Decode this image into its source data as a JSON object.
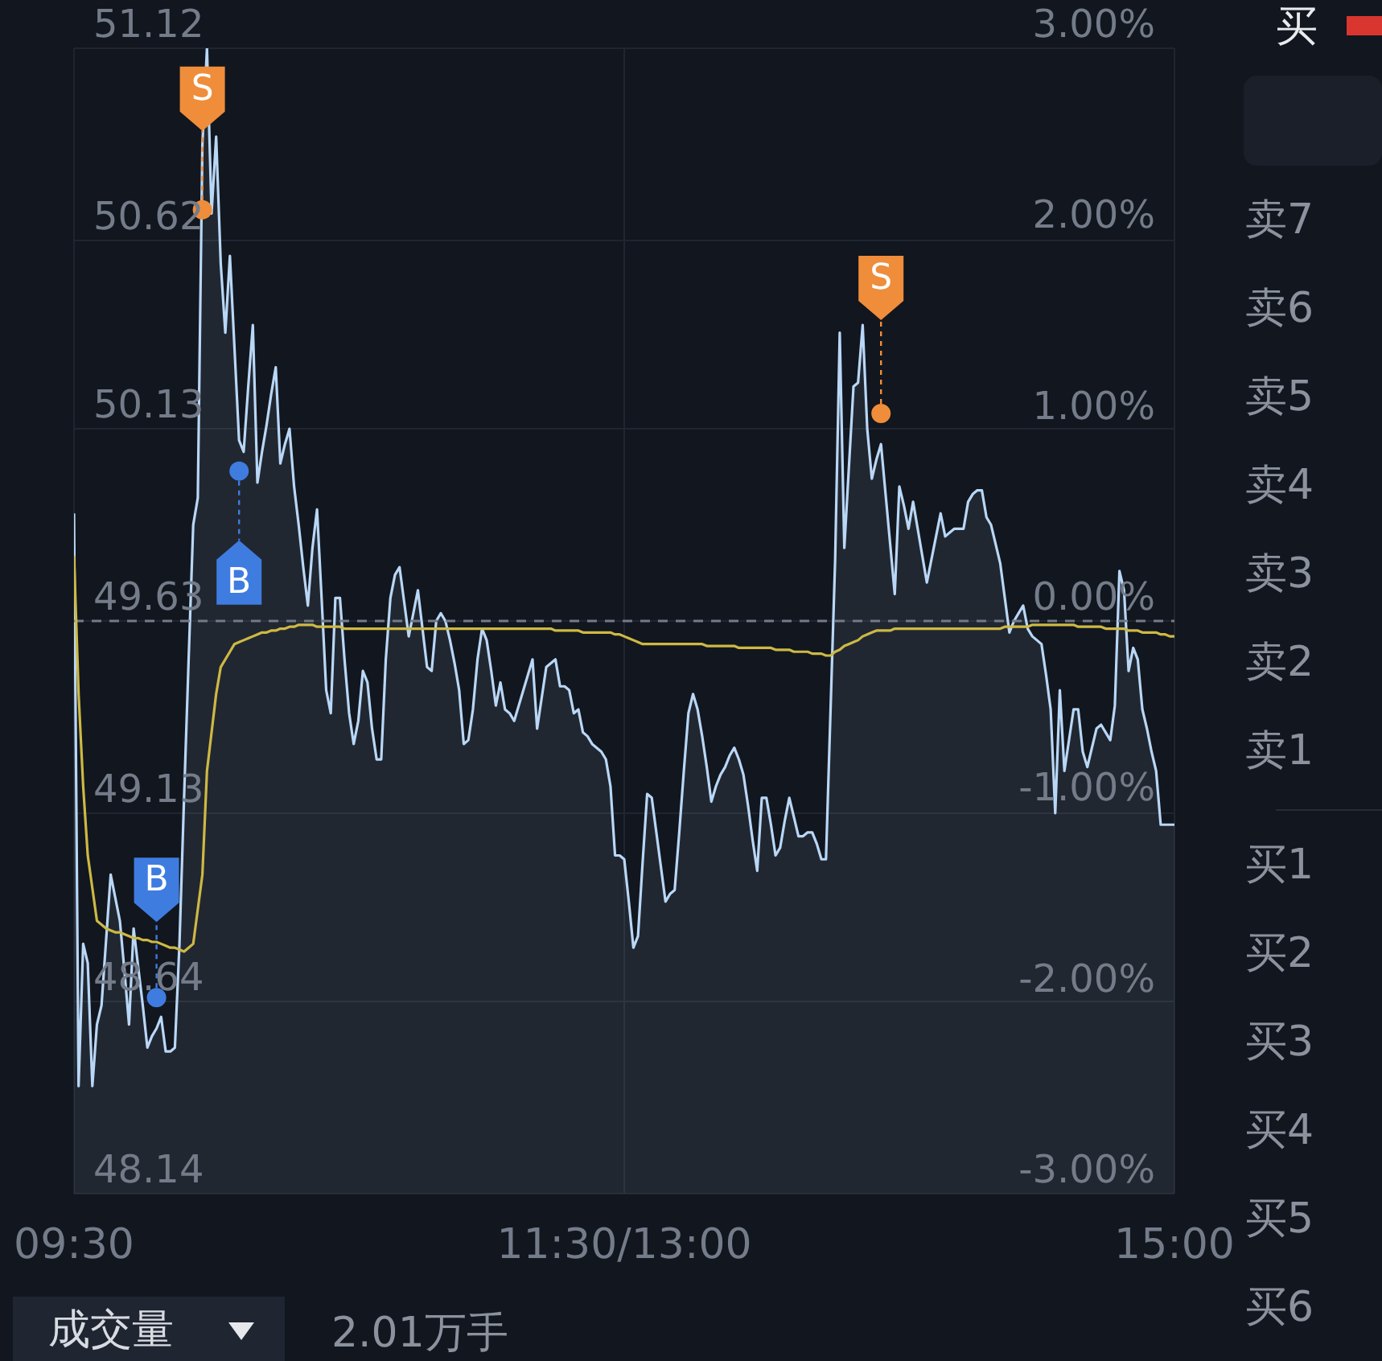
{
  "chart_data": {
    "type": "area",
    "categories": [
      "09:30",
      null,
      null,
      null,
      null,
      null,
      null,
      null,
      null,
      null,
      null,
      null,
      null,
      null,
      null,
      null,
      null,
      null,
      null,
      null,
      null,
      null,
      null,
      null,
      null,
      null,
      null,
      null,
      null,
      null,
      null,
      null,
      null,
      null,
      null,
      null,
      null,
      null,
      null,
      null,
      null,
      null,
      null,
      null,
      null,
      null,
      null,
      null,
      null,
      null,
      null,
      null,
      null,
      null,
      null,
      null,
      null,
      null,
      null,
      null,
      null,
      null,
      null,
      null,
      null,
      null,
      null,
      null,
      null,
      null,
      null,
      null,
      null,
      null,
      null,
      null,
      null,
      null,
      null,
      null,
      null,
      null,
      null,
      null,
      null,
      null,
      null,
      null,
      null,
      null,
      null,
      null,
      null,
      null,
      null,
      null,
      null,
      null,
      null,
      null,
      null,
      null,
      null,
      null,
      null,
      null,
      null,
      null,
      null,
      null,
      null,
      null,
      null,
      null,
      null,
      null,
      null,
      null,
      null,
      null,
      "11:30/13:00",
      null,
      null,
      null,
      null,
      null,
      null,
      null,
      null,
      null,
      null,
      null,
      null,
      null,
      null,
      null,
      null,
      null,
      null,
      null,
      null,
      null,
      null,
      null,
      null,
      null,
      null,
      null,
      null,
      null,
      null,
      null,
      null,
      null,
      null,
      null,
      null,
      null,
      null,
      null,
      null,
      null,
      null,
      null,
      null,
      null,
      null,
      null,
      null,
      null,
      null,
      null,
      null,
      null,
      null,
      null,
      null,
      null,
      null,
      null,
      null,
      null,
      null,
      null,
      null,
      null,
      null,
      null,
      null,
      null,
      null,
      null,
      null,
      null,
      null,
      null,
      null,
      null,
      null,
      null,
      null,
      null,
      null,
      null,
      null,
      null,
      null,
      null,
      null,
      null,
      null,
      null,
      null,
      null,
      null,
      null,
      null,
      null,
      null,
      null,
      null,
      null,
      null,
      null,
      null,
      null,
      null,
      null,
      null,
      null,
      null,
      null,
      null,
      null,
      null,
      null,
      null,
      null,
      null,
      null,
      "15:00"
    ],
    "ylim": [
      48.14,
      51.12
    ],
    "yticks": [
      48.14,
      48.64,
      49.13,
      49.63,
      50.13,
      50.62,
      51.12
    ],
    "y2lim": [
      -3,
      3
    ],
    "y2ticks": [
      {
        "value": -3,
        "label": "-3.00%"
      },
      {
        "value": -2,
        "label": "-2.00%"
      },
      {
        "value": -1,
        "label": "-1.00%"
      },
      {
        "value": 0,
        "label": "0.00%"
      },
      {
        "value": 1,
        "label": "1.00%"
      },
      {
        "value": 2,
        "label": "2.00%"
      },
      {
        "value": 3,
        "label": "3.00%"
      }
    ],
    "grid": true,
    "ref_lines": [
      {
        "axis": "y",
        "value": 49.63,
        "color": "#737a88",
        "line_style": "dashed"
      }
    ],
    "series": [
      {
        "color": "#b9d7f6",
        "values": [
          49.91,
          48.42,
          48.79,
          48.74,
          48.42,
          48.58,
          48.63,
          48.8,
          48.97,
          48.91,
          48.85,
          48.72,
          48.58,
          48.83,
          48.73,
          48.63,
          48.52,
          48.55,
          48.57,
          48.6,
          48.51,
          48.51,
          48.52,
          48.79,
          49.17,
          49.53,
          49.88,
          49.95,
          50.87,
          51.12,
          50.69,
          50.89,
          50.56,
          50.38,
          50.58,
          50.34,
          50.1,
          50.07,
          50.24,
          50.4,
          49.99,
          50.07,
          50.14,
          50.22,
          50.29,
          50.04,
          50.09,
          50.13,
          49.98,
          49.88,
          49.77,
          49.67,
          49.82,
          49.92,
          49.69,
          49.45,
          49.39,
          49.69,
          49.69,
          49.53,
          49.39,
          49.31,
          49.37,
          49.5,
          49.47,
          49.35,
          49.27,
          49.27,
          49.53,
          49.69,
          49.75,
          49.77,
          49.68,
          49.59,
          49.65,
          49.71,
          49.61,
          49.51,
          49.5,
          49.63,
          49.65,
          49.63,
          49.58,
          49.52,
          49.45,
          49.31,
          49.32,
          49.4,
          49.53,
          49.61,
          49.58,
          49.5,
          49.41,
          49.47,
          49.4,
          49.39,
          49.37,
          49.41,
          49.45,
          49.49,
          49.53,
          49.35,
          49.43,
          49.51,
          49.52,
          49.53,
          49.46,
          49.46,
          49.45,
          49.39,
          49.4,
          49.34,
          49.33,
          49.31,
          49.3,
          49.29,
          49.27,
          49.2,
          49.02,
          49.02,
          49.01,
          48.9,
          48.78,
          48.81,
          49.0,
          49.18,
          49.17,
          49.08,
          48.99,
          48.9,
          48.92,
          48.93,
          49.08,
          49.24,
          49.39,
          49.44,
          49.4,
          49.33,
          49.25,
          49.16,
          49.2,
          49.23,
          49.25,
          49.28,
          49.3,
          49.27,
          49.23,
          49.15,
          49.06,
          48.98,
          49.17,
          49.17,
          49.1,
          49.02,
          49.04,
          49.11,
          49.17,
          49.12,
          49.07,
          49.07,
          49.08,
          49.08,
          49.05,
          49.01,
          49.01,
          49.4,
          49.79,
          50.38,
          49.82,
          50.03,
          50.24,
          50.25,
          50.4,
          50.13,
          50.0,
          50.05,
          50.09,
          49.96,
          49.83,
          49.7,
          49.98,
          49.93,
          49.87,
          49.94,
          49.87,
          49.8,
          49.73,
          49.79,
          49.85,
          49.91,
          49.85,
          49.86,
          49.87,
          49.87,
          49.87,
          49.94,
          49.96,
          49.97,
          49.97,
          49.9,
          49.88,
          49.83,
          49.78,
          49.69,
          49.6,
          49.63,
          49.65,
          49.67,
          49.61,
          49.59,
          49.58,
          49.57,
          49.49,
          49.4,
          49.13,
          49.45,
          49.24,
          49.32,
          49.4,
          49.4,
          49.29,
          49.25,
          49.3,
          49.35,
          49.36,
          49.34,
          49.32,
          49.41,
          49.76,
          49.71,
          49.5,
          49.56,
          49.53,
          49.4,
          49.35,
          49.29,
          49.24,
          49.1,
          49.1,
          49.1,
          49.1
        ]
      },
      {
        "type": "line",
        "color": "#cdb944",
        "values": [
          49.8,
          49.44,
          49.2,
          49.02,
          48.935,
          48.85,
          48.84,
          48.83,
          48.825,
          48.82,
          48.82,
          48.815,
          48.81,
          48.805,
          48.805,
          48.8,
          48.8,
          48.795,
          48.795,
          48.79,
          48.785,
          48.78,
          48.78,
          48.775,
          48.77,
          48.78,
          48.79,
          48.88,
          48.97,
          49.24,
          49.34,
          49.44,
          49.51,
          49.53,
          49.55,
          49.57,
          49.575,
          49.58,
          49.585,
          49.59,
          49.595,
          49.6,
          49.6,
          49.605,
          49.605,
          49.61,
          49.61,
          49.615,
          49.615,
          49.62,
          49.62,
          49.62,
          49.62,
          49.615,
          49.615,
          49.615,
          49.615,
          49.615,
          49.615,
          49.61,
          49.61,
          49.61,
          49.61,
          49.61,
          49.61,
          49.61,
          49.61,
          49.61,
          49.61,
          49.61,
          49.61,
          49.61,
          49.61,
          49.61,
          49.61,
          49.61,
          49.61,
          49.61,
          49.61,
          49.61,
          49.61,
          49.61,
          49.61,
          49.61,
          49.61,
          49.61,
          49.61,
          49.61,
          49.61,
          49.61,
          49.61,
          49.61,
          49.61,
          49.61,
          49.61,
          49.61,
          49.61,
          49.61,
          49.61,
          49.61,
          49.61,
          49.61,
          49.61,
          49.61,
          49.61,
          49.605,
          49.605,
          49.605,
          49.605,
          49.605,
          49.605,
          49.6,
          49.6,
          49.6,
          49.6,
          49.6,
          49.6,
          49.6,
          49.595,
          49.595,
          49.59,
          49.585,
          49.58,
          49.575,
          49.57,
          49.57,
          49.57,
          49.57,
          49.57,
          49.57,
          49.57,
          49.57,
          49.57,
          49.57,
          49.57,
          49.57,
          49.57,
          49.57,
          49.565,
          49.565,
          49.565,
          49.565,
          49.565,
          49.565,
          49.565,
          49.56,
          49.56,
          49.56,
          49.56,
          49.56,
          49.56,
          49.56,
          49.56,
          49.555,
          49.555,
          49.555,
          49.555,
          49.55,
          49.55,
          49.55,
          49.55,
          49.545,
          49.545,
          49.545,
          49.54,
          49.54,
          49.55,
          49.555,
          49.565,
          49.57,
          49.575,
          49.58,
          49.59,
          49.595,
          49.6,
          49.605,
          49.605,
          49.605,
          49.605,
          49.61,
          49.61,
          49.61,
          49.61,
          49.61,
          49.61,
          49.61,
          49.61,
          49.61,
          49.61,
          49.61,
          49.61,
          49.61,
          49.61,
          49.61,
          49.61,
          49.61,
          49.61,
          49.61,
          49.61,
          49.61,
          49.61,
          49.61,
          49.61,
          49.615,
          49.615,
          49.615,
          49.615,
          49.615,
          49.615,
          49.62,
          49.62,
          49.62,
          49.62,
          49.62,
          49.62,
          49.62,
          49.62,
          49.62,
          49.62,
          49.615,
          49.615,
          49.615,
          49.615,
          49.615,
          49.615,
          49.61,
          49.61,
          49.61,
          49.61,
          49.61,
          49.605,
          49.605,
          49.605,
          49.6,
          49.6,
          49.6,
          49.6,
          49.595,
          49.595,
          49.59,
          49.59
        ]
      },
      {
        "type": "scatter",
        "name": "S",
        "color": "#ef8d3b",
        "values": [
          null,
          null,
          null,
          null,
          null,
          null,
          null,
          null,
          null,
          null,
          null,
          null,
          null,
          null,
          null,
          null,
          null,
          null,
          null,
          null,
          null,
          null,
          null,
          null,
          null,
          null,
          null,
          null,
          50.7,
          null,
          null,
          null,
          null,
          null,
          null,
          null,
          null,
          null,
          null,
          null,
          null,
          null,
          null,
          null,
          null,
          null,
          null,
          null,
          null,
          null,
          null,
          null,
          null,
          null,
          null,
          null,
          null,
          null,
          null,
          null,
          null,
          null,
          null,
          null,
          null,
          null,
          null,
          null,
          null,
          null,
          null,
          null,
          null,
          null,
          null,
          null,
          null,
          null,
          null,
          null,
          null,
          null,
          null,
          null,
          null,
          null,
          null,
          null,
          null,
          null,
          null,
          null,
          null,
          null,
          null,
          null,
          null,
          null,
          null,
          null,
          null,
          null,
          null,
          null,
          null,
          null,
          null,
          null,
          null,
          null,
          null,
          null,
          null,
          null,
          null,
          null,
          null,
          null,
          null,
          null,
          null,
          null,
          null,
          null,
          null,
          null,
          null,
          null,
          null,
          null,
          null,
          null,
          null,
          null,
          null,
          null,
          null,
          null,
          null,
          null,
          null,
          null,
          null,
          null,
          null,
          null,
          null,
          null,
          null,
          null,
          null,
          null,
          null,
          null,
          null,
          null,
          null,
          null,
          null,
          null,
          null,
          null,
          null,
          null,
          null,
          null,
          null,
          null,
          null,
          null,
          null,
          null,
          null,
          null,
          null,
          null,
          50.17,
          null,
          null,
          null,
          null,
          null,
          null,
          null,
          null,
          null,
          null,
          null,
          null,
          null,
          null,
          null,
          null,
          null,
          null,
          null,
          null,
          null,
          null,
          null,
          null,
          null,
          null,
          null,
          null,
          null,
          null,
          null,
          null,
          null,
          null,
          null,
          null,
          null,
          null,
          null,
          null,
          null,
          null,
          null,
          null,
          null,
          null,
          null,
          null,
          null,
          null,
          null,
          null,
          null,
          null,
          null,
          null,
          null,
          null,
          null,
          null,
          null,
          null,
          null,
          null
        ]
      },
      {
        "type": "scatter",
        "name": "B",
        "color": "#3f7ce0",
        "values": [
          null,
          null,
          null,
          null,
          null,
          null,
          null,
          null,
          null,
          null,
          null,
          null,
          null,
          null,
          null,
          null,
          null,
          null,
          48.65,
          null,
          null,
          null,
          null,
          null,
          null,
          null,
          null,
          null,
          null,
          null,
          null,
          null,
          null,
          null,
          null,
          null,
          50.02,
          null,
          null,
          null,
          null,
          null,
          null,
          null,
          null,
          null,
          null,
          null,
          null,
          null,
          null,
          null,
          null,
          null,
          null,
          null,
          null,
          null,
          null,
          null,
          null,
          null,
          null,
          null,
          null,
          null,
          null,
          null,
          null,
          null,
          null,
          null,
          null,
          null,
          null,
          null,
          null,
          null,
          null,
          null,
          null,
          null,
          null,
          null,
          null,
          null,
          null,
          null,
          null,
          null,
          null,
          null,
          null,
          null,
          null,
          null,
          null,
          null,
          null,
          null,
          null,
          null,
          null,
          null,
          null,
          null,
          null,
          null,
          null,
          null,
          null,
          null,
          null,
          null,
          null,
          null,
          null,
          null,
          null,
          null,
          null,
          null,
          null,
          null,
          null,
          null,
          null,
          null,
          null,
          null,
          null,
          null,
          null,
          null,
          null,
          null,
          null,
          null,
          null,
          null,
          null,
          null,
          null,
          null,
          null,
          null,
          null,
          null,
          null,
          null,
          null,
          null,
          null,
          null,
          null,
          null,
          null,
          null,
          null,
          null,
          null,
          null,
          null,
          null,
          null,
          null,
          null,
          null,
          null,
          null,
          null,
          null,
          null,
          null,
          null,
          null,
          null,
          null,
          null,
          null,
          null,
          null,
          null,
          null,
          null,
          null,
          null,
          null,
          null,
          null,
          null,
          null,
          null,
          null,
          null,
          null,
          null,
          null,
          null,
          null,
          null,
          null,
          null,
          null,
          null,
          null,
          null,
          null,
          null,
          null,
          null,
          null,
          null,
          null,
          null,
          null,
          null,
          null,
          null,
          null,
          null,
          null,
          null,
          null,
          null,
          null,
          null,
          null,
          null,
          null,
          null,
          null,
          null,
          null,
          null,
          null,
          null,
          null,
          null,
          null,
          null
        ]
      }
    ],
    "annotations": [
      "买",
      "卖7",
      "卖6",
      "卖5",
      "卖4",
      "卖3",
      "卖2",
      "卖1",
      "买1",
      "买2",
      "买3",
      "买4",
      "买5",
      "买6",
      "成交量",
      "2.01万手"
    ]
  }
}
